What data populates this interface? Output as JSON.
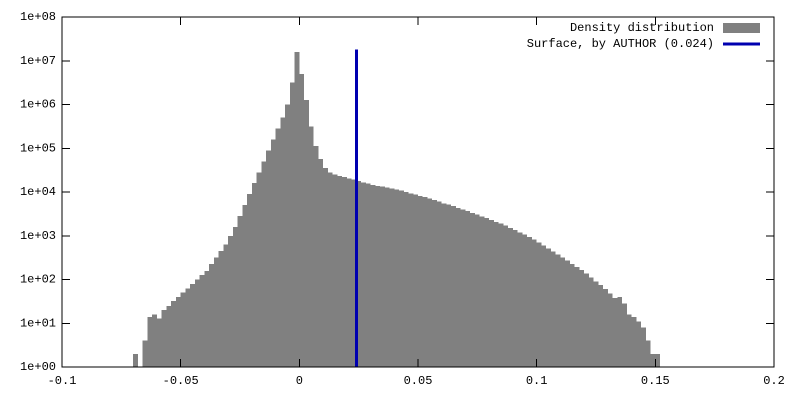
{
  "chart_data": {
    "type": "histogram",
    "xlim": [
      -0.1,
      0.2
    ],
    "ylim": [
      1,
      100000000
    ],
    "log_y": true,
    "legend": "upper-right",
    "xticks": [
      -0.1,
      -0.05,
      0,
      0.05,
      0.1,
      0.15,
      0.2
    ],
    "yticks": [
      {
        "value": 1,
        "label": "1e+00"
      },
      {
        "value": 10,
        "label": "1e+01"
      },
      {
        "value": 100,
        "label": "1e+02"
      },
      {
        "value": 1000,
        "label": "1e+03"
      },
      {
        "value": 10000,
        "label": "1e+04"
      },
      {
        "value": 100000,
        "label": "1e+05"
      },
      {
        "value": 1000000,
        "label": "1e+06"
      },
      {
        "value": 10000000,
        "label": "1e+07"
      },
      {
        "value": 100000000,
        "label": "1e+08"
      }
    ],
    "series": [
      {
        "name": "Density distribution",
        "type": "histogram",
        "color": "#808080",
        "bins": [
          -0.07,
          -0.068,
          -0.066,
          -0.064,
          -0.062,
          -0.06,
          -0.058,
          -0.056,
          -0.054,
          -0.052,
          -0.05,
          -0.048,
          -0.046,
          -0.044,
          -0.042,
          -0.04,
          -0.038,
          -0.036,
          -0.034,
          -0.032,
          -0.03,
          -0.028,
          -0.026,
          -0.024,
          -0.022,
          -0.02,
          -0.018,
          -0.016,
          -0.014,
          -0.012,
          -0.01,
          -0.008,
          -0.006,
          -0.004,
          -0.002,
          0,
          0.002,
          0.004,
          0.006,
          0.008,
          0.01,
          0.012,
          0.014,
          0.016,
          0.018,
          0.02,
          0.022,
          0.024,
          0.026,
          0.028,
          0.03,
          0.032,
          0.034,
          0.036,
          0.038,
          0.04,
          0.042,
          0.044,
          0.046,
          0.048,
          0.05,
          0.052,
          0.054,
          0.056,
          0.058,
          0.06,
          0.062,
          0.064,
          0.066,
          0.068,
          0.07,
          0.072,
          0.074,
          0.076,
          0.078,
          0.08,
          0.082,
          0.084,
          0.086,
          0.088,
          0.09,
          0.092,
          0.094,
          0.096,
          0.098,
          0.1,
          0.102,
          0.104,
          0.106,
          0.108,
          0.11,
          0.112,
          0.114,
          0.116,
          0.118,
          0.12,
          0.122,
          0.124,
          0.126,
          0.128,
          0.13,
          0.132,
          0.134,
          0.136,
          0.138,
          0.14,
          0.142,
          0.144,
          0.146,
          0.148,
          0.15,
          0.152
        ],
        "values": [
          2,
          0,
          4,
          14,
          16,
          13,
          20,
          25,
          32,
          40,
          50,
          63,
          79,
          100,
          126,
          158,
          224,
          316,
          447,
          631,
          1000,
          1585,
          2818,
          5012,
          8913,
          15849,
          28184,
          50119,
          89125,
          158489,
          281838,
          501187,
          1000000,
          3162278,
          15848932,
          5011872,
          1258925,
          316228,
          112202,
          56234,
          35481,
          28184,
          25119,
          23442,
          21878,
          20417,
          19055,
          17783,
          16596,
          15488,
          14454,
          13804,
          13183,
          12589,
          12023,
          11482,
          10715,
          10000,
          9333,
          8710,
          8128,
          7586,
          7079,
          6607,
          6026,
          5495,
          5129,
          4786,
          4365,
          3981,
          3631,
          3311,
          3020,
          2754,
          2512,
          2291,
          2089,
          1905,
          1698,
          1514,
          1349,
          1202,
          1072,
          933,
          813,
          708,
          603,
          513,
          437,
          372,
          316,
          269,
          229,
          195,
          166,
          138,
          112,
          91,
          74,
          60,
          48,
          38,
          40,
          28,
          16,
          14,
          11,
          8,
          4,
          2,
          2
        ]
      },
      {
        "name": "Surface, by AUTHOR (0.024)",
        "type": "line",
        "color": "#0000b0",
        "x": [
          0.024,
          0.024
        ],
        "values": [
          1,
          18000000
        ]
      }
    ]
  }
}
